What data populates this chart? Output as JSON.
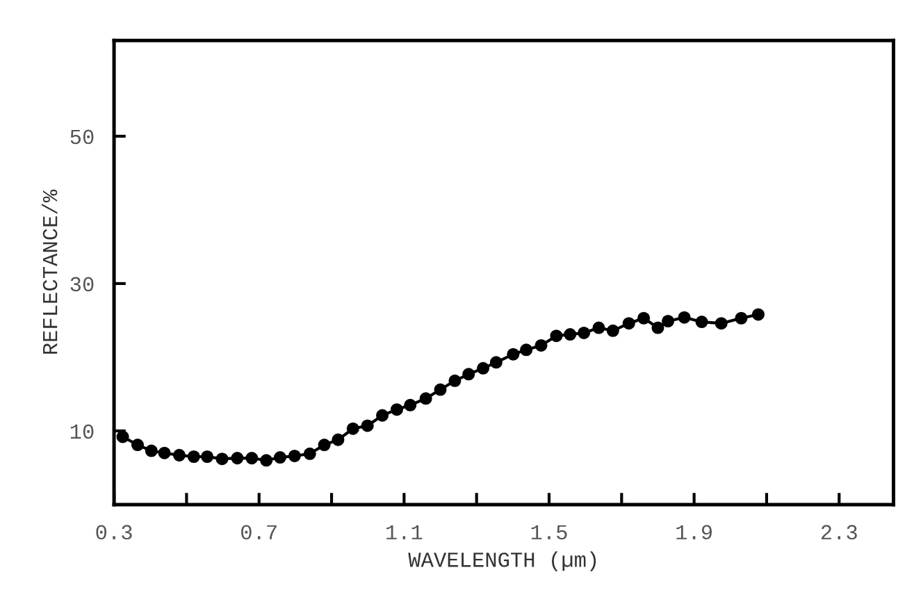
{
  "chart_data": {
    "type": "line",
    "xlabel": "WAVELENGTH (µm)",
    "ylabel": "REFLECTANCE/%",
    "x": [
      0.324,
      0.365,
      0.403,
      0.439,
      0.48,
      0.52,
      0.557,
      0.598,
      0.64,
      0.68,
      0.72,
      0.758,
      0.798,
      0.84,
      0.88,
      0.918,
      0.959,
      0.999,
      1.04,
      1.08,
      1.117,
      1.16,
      1.2,
      1.24,
      1.278,
      1.318,
      1.354,
      1.401,
      1.437,
      1.478,
      1.52,
      1.558,
      1.596,
      1.637,
      1.676,
      1.72,
      1.761,
      1.8,
      1.828,
      1.873,
      1.921,
      1.975,
      2.03,
      2.077
    ],
    "series": [
      {
        "color": "#000000",
        "values": [
          9.2,
          8.1,
          7.3,
          7.0,
          6.7,
          6.5,
          6.5,
          6.2,
          6.3,
          6.3,
          6.0,
          6.4,
          6.6,
          6.9,
          8.1,
          8.8,
          10.3,
          10.7,
          12.1,
          12.9,
          13.5,
          14.4,
          15.6,
          16.8,
          17.7,
          18.5,
          19.3,
          20.4,
          21.0,
          21.6,
          22.9,
          23.1,
          23.3,
          24.0,
          23.6,
          24.6,
          25.3,
          24.0,
          24.9,
          25.4,
          24.8,
          24.6,
          25.3,
          25.8
        ]
      }
    ],
    "xlim": [
      0.3,
      2.45
    ],
    "ylim": [
      0,
      63
    ],
    "xticks": [
      0.3,
      {
        "value": 0.5,
        "label": null
      },
      0.7,
      {
        "value": 0.9,
        "label": null
      },
      1.1,
      {
        "value": 1.3,
        "label": null
      },
      1.5,
      {
        "value": 1.7,
        "label": null
      },
      1.9,
      {
        "value": 2.1,
        "label": null
      },
      2.3
    ],
    "yticks": [
      10,
      30,
      50
    ],
    "marker": "circle",
    "line_style": "solid",
    "grid": false,
    "legend": false
  }
}
